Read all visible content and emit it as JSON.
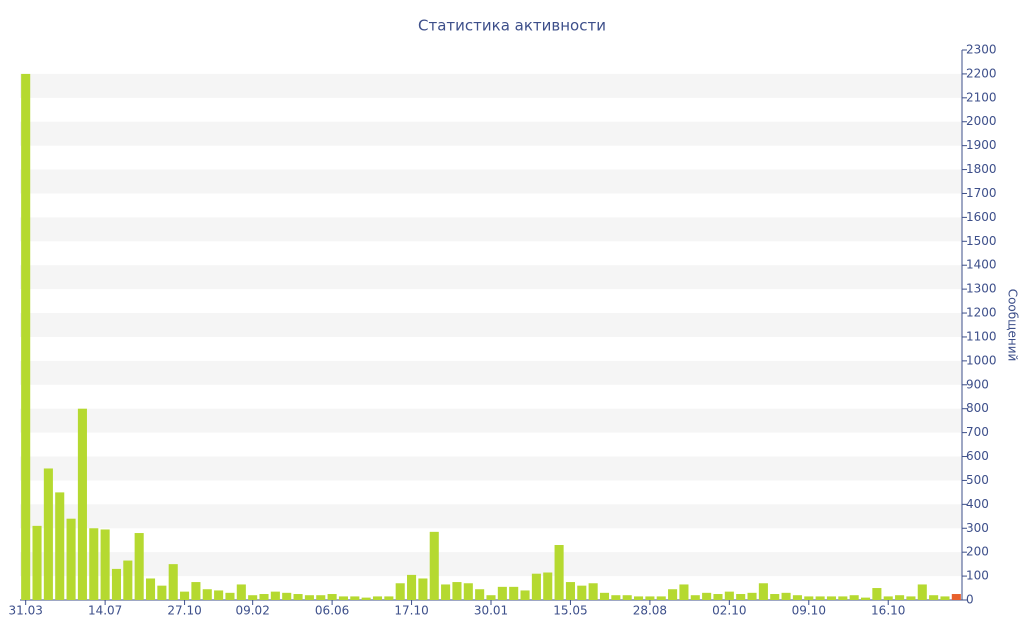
{
  "chart_data": {
    "type": "bar",
    "title": "Статистика активности",
    "ylabel": "Сообщений",
    "categories": [
      "31.03",
      null,
      null,
      null,
      null,
      null,
      null,
      "14.07",
      null,
      null,
      null,
      null,
      null,
      null,
      "27.10",
      null,
      null,
      null,
      null,
      null,
      "09.02",
      null,
      null,
      null,
      null,
      null,
      null,
      "06.06",
      null,
      null,
      null,
      null,
      null,
      null,
      "17.10",
      null,
      null,
      null,
      null,
      null,
      null,
      "30.01",
      null,
      null,
      null,
      null,
      null,
      null,
      "15.05",
      null,
      null,
      null,
      null,
      null,
      null,
      "28.08",
      null,
      null,
      null,
      null,
      null,
      null,
      "02.10",
      null,
      null,
      null,
      null,
      null,
      null,
      "09.10",
      null,
      null,
      null,
      null,
      null,
      null,
      "16.10",
      null,
      null,
      null,
      null,
      null,
      null
    ],
    "values": [
      2200,
      310,
      550,
      450,
      340,
      800,
      300,
      295,
      130,
      165,
      280,
      90,
      60,
      150,
      35,
      75,
      45,
      40,
      30,
      65,
      20,
      25,
      35,
      30,
      25,
      20,
      20,
      25,
      15,
      15,
      10,
      15,
      15,
      70,
      105,
      90,
      285,
      65,
      75,
      70,
      45,
      20,
      55,
      55,
      40,
      110,
      115,
      230,
      75,
      60,
      70,
      30,
      20,
      20,
      15,
      15,
      15,
      45,
      65,
      20,
      30,
      25,
      35,
      25,
      30,
      70,
      25,
      30,
      20,
      15,
      15,
      15,
      15,
      20,
      10,
      50,
      15,
      20,
      15,
      65,
      20,
      15,
      25
    ],
    "colors": [
      "#b5d930",
      "#b5d930",
      "#b5d930",
      "#b5d930",
      "#b5d930",
      "#b5d930",
      "#b5d930",
      "#b5d930",
      "#b5d930",
      "#b5d930",
      "#b5d930",
      "#b5d930",
      "#b5d930",
      "#b5d930",
      "#b5d930",
      "#b5d930",
      "#b5d930",
      "#b5d930",
      "#b5d930",
      "#b5d930",
      "#b5d930",
      "#b5d930",
      "#b5d930",
      "#b5d930",
      "#b5d930",
      "#b5d930",
      "#b5d930",
      "#b5d930",
      "#b5d930",
      "#b5d930",
      "#b5d930",
      "#b5d930",
      "#b5d930",
      "#b5d930",
      "#b5d930",
      "#b5d930",
      "#b5d930",
      "#b5d930",
      "#b5d930",
      "#b5d930",
      "#b5d930",
      "#b5d930",
      "#b5d930",
      "#b5d930",
      "#b5d930",
      "#b5d930",
      "#b5d930",
      "#b5d930",
      "#b5d930",
      "#b5d930",
      "#b5d930",
      "#b5d930",
      "#b5d930",
      "#b5d930",
      "#b5d930",
      "#b5d930",
      "#b5d930",
      "#b5d930",
      "#b5d930",
      "#b5d930",
      "#b5d930",
      "#b5d930",
      "#b5d930",
      "#b5d930",
      "#b5d930",
      "#b5d930",
      "#b5d930",
      "#b5d930",
      "#b5d930",
      "#b5d930",
      "#b5d930",
      "#b5d930",
      "#b5d930",
      "#b5d930",
      "#b5d930",
      "#b5d930",
      "#b5d930",
      "#b5d930",
      "#b5d930",
      "#b5d930",
      "#b5d930",
      "#b5d930",
      "#e8602c"
    ],
    "ylim": [
      0,
      2300
    ],
    "yticks": [
      0,
      100,
      200,
      300,
      400,
      500,
      600,
      700,
      800,
      900,
      1000,
      1100,
      1200,
      1300,
      1400,
      1500,
      1600,
      1700,
      1800,
      1900,
      2000,
      2100,
      2200,
      2300
    ],
    "grid": true
  }
}
